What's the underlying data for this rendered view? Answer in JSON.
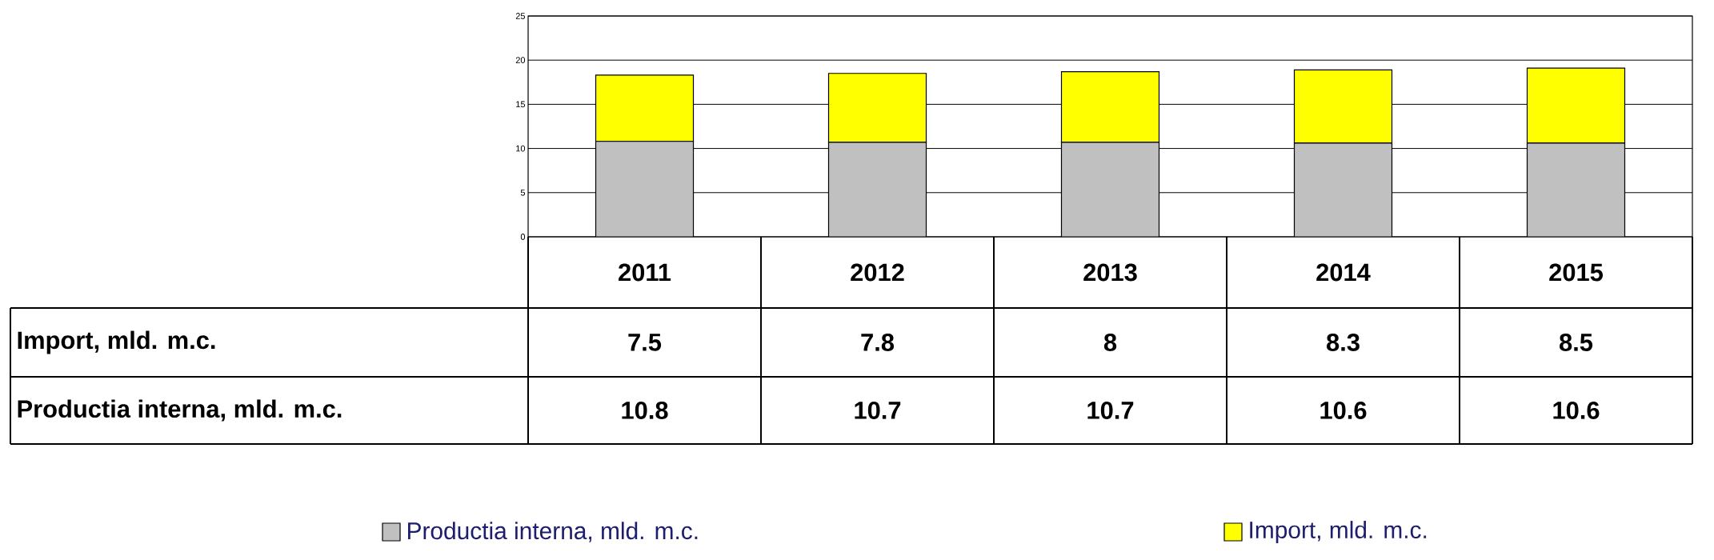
{
  "chart_data": {
    "type": "bar",
    "stacked": true,
    "categories": [
      "2011",
      "2012",
      "2013",
      "2014",
      "2015"
    ],
    "series": [
      {
        "name": "Productia interna, mld. m.c.",
        "color": "#c0c0c0",
        "values": [
          10.8,
          10.7,
          10.7,
          10.6,
          10.6
        ]
      },
      {
        "name": "Import, mld. m.c.",
        "color": "#ffff00",
        "values": [
          7.5,
          7.8,
          8,
          8.3,
          8.5
        ]
      }
    ],
    "ylim": [
      0,
      25
    ],
    "yticks": [
      0,
      5,
      10,
      15,
      20,
      25
    ],
    "grid": "y",
    "legend": "bottom",
    "data_labels": true
  }
}
